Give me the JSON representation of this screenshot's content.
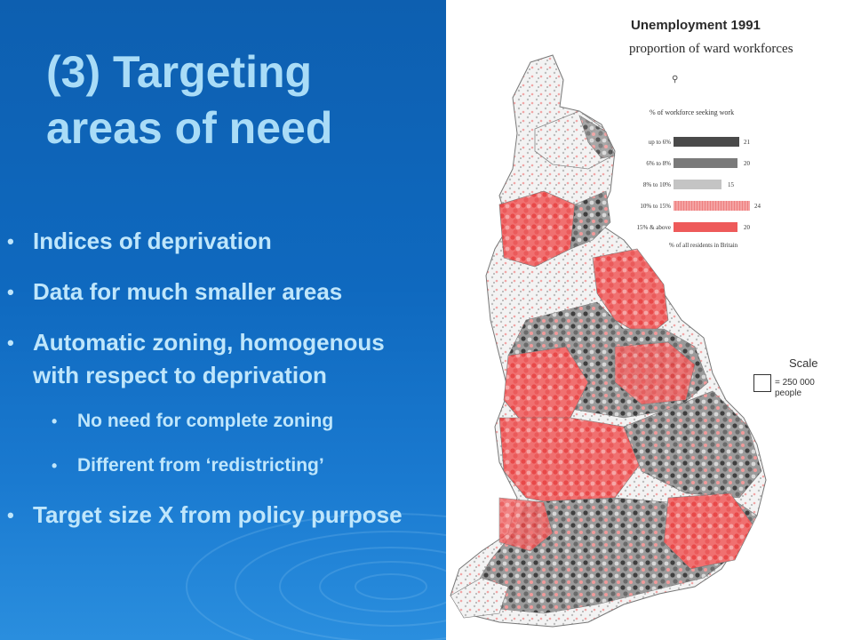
{
  "slide": {
    "title_line1": "(3) Targeting",
    "title_line2": "areas of need",
    "bullets": [
      "Indices of deprivation",
      "Data for much smaller areas",
      "Automatic zoning, homogenous with respect to deprivation",
      "No need for complete zoning",
      "Different from ‘redistricting’",
      "Target size X from policy purpose"
    ]
  },
  "map": {
    "title": "Unemployment 1991",
    "subtitle": "proportion of ward workforces",
    "legend_title": "% of workforce seeking work",
    "legend": [
      {
        "label": "up to 6%",
        "value": "21",
        "color": "#4a4a4a"
      },
      {
        "label": "6% to 8%",
        "value": "20",
        "color": "#7a7a7a"
      },
      {
        "label": "8% to 10%",
        "value": "15",
        "color": "#c4c4c4"
      },
      {
        "label": "10% to 15%",
        "value": "24",
        "color": "#f4a3a3"
      },
      {
        "label": "15% & above",
        "value": "20",
        "color": "#ee5a5a"
      }
    ],
    "legend_footer": "% of all residents in Britain",
    "scale_label": "Scale",
    "scale_value_line1": "= 250 000",
    "scale_value_line2": "people"
  }
}
